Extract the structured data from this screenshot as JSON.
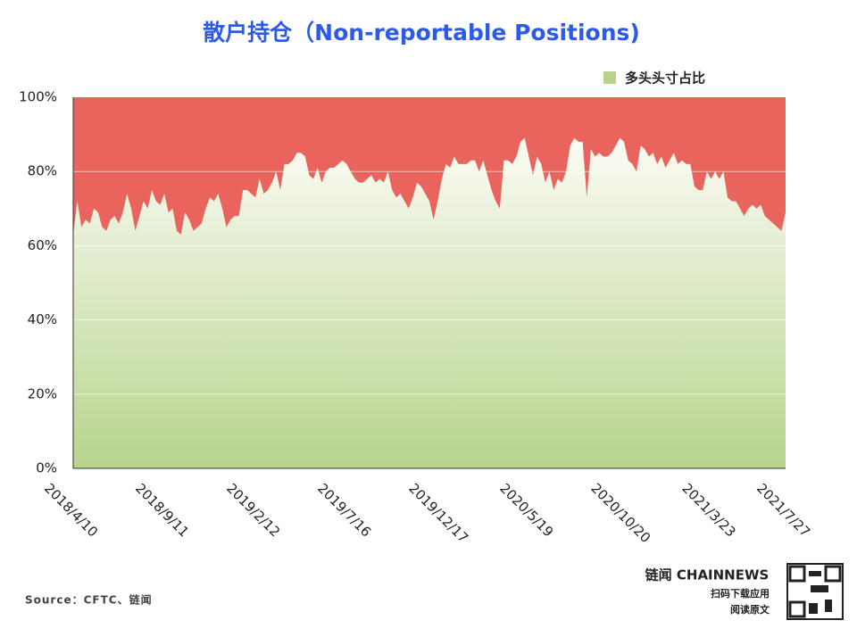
{
  "chart_data": {
    "type": "area",
    "title": "散户持仓（Non-reportable Positions)",
    "categories": [
      "2018/4/10",
      null,
      null,
      null,
      null,
      null,
      null,
      null,
      null,
      null,
      null,
      null,
      null,
      null,
      null,
      null,
      null,
      null,
      null,
      null,
      null,
      null,
      "2018/9/11",
      null,
      null,
      null,
      null,
      null,
      null,
      null,
      null,
      null,
      null,
      null,
      null,
      null,
      null,
      null,
      null,
      null,
      null,
      null,
      null,
      null,
      "2019/2/12",
      null,
      null,
      null,
      null,
      null,
      null,
      null,
      null,
      null,
      null,
      null,
      null,
      null,
      null,
      null,
      null,
      null,
      null,
      null,
      null,
      null,
      "2019/7/16",
      null,
      null,
      null,
      null,
      null,
      null,
      null,
      null,
      null,
      null,
      null,
      null,
      null,
      null,
      null,
      null,
      null,
      null,
      null,
      null,
      null,
      "2019/12/17",
      null,
      null,
      null,
      null,
      null,
      null,
      null,
      null,
      null,
      null,
      null,
      null,
      null,
      null,
      null,
      null,
      null,
      null,
      null,
      null,
      null,
      "2020/5/19",
      null,
      null,
      null,
      null,
      null,
      null,
      null,
      null,
      null,
      null,
      null,
      null,
      null,
      null,
      null,
      null,
      null,
      null,
      null,
      null,
      null,
      "2020/10/20",
      null,
      null,
      null,
      null,
      null,
      null,
      null,
      null,
      null,
      null,
      null,
      null,
      null,
      null,
      null,
      null,
      null,
      null,
      null,
      null,
      null,
      "2021/3/23",
      null,
      null,
      null,
      null,
      null,
      null,
      null,
      null,
      null,
      null,
      null,
      null,
      null,
      null,
      null,
      null,
      null,
      "2021/7/27"
    ],
    "series": [
      {
        "name": "多头头寸占比",
        "color": "#b7d48c",
        "values": [
          63,
          72,
          65,
          67,
          66,
          70,
          69,
          65,
          64,
          67,
          68,
          66,
          69,
          74,
          70,
          64,
          68,
          72,
          70,
          75,
          72,
          71,
          74,
          69,
          70,
          64,
          63,
          69,
          67,
          64,
          65,
          66,
          70,
          73,
          72,
          74,
          70,
          65,
          67,
          68,
          68,
          75,
          75,
          74,
          73,
          78,
          74,
          75,
          77,
          80,
          75,
          82,
          82,
          83,
          85,
          85,
          84,
          79,
          78,
          81,
          77,
          80,
          81,
          81,
          82,
          83,
          82,
          80,
          78,
          77,
          77,
          78,
          79,
          77,
          78,
          77,
          80,
          75,
          73,
          74,
          72,
          70,
          73,
          77,
          76,
          74,
          72,
          67,
          72,
          78,
          82,
          81,
          84,
          82,
          82,
          82,
          83,
          83,
          80,
          83,
          79,
          75,
          72,
          70,
          83,
          83,
          82,
          84,
          88,
          89,
          84,
          79,
          84,
          82,
          77,
          80,
          75,
          78,
          77,
          80,
          87,
          89,
          88,
          88,
          73,
          86,
          84,
          85,
          84,
          84,
          85,
          87,
          89,
          88,
          83,
          82,
          80,
          87,
          86,
          84,
          85,
          82,
          84,
          81,
          83,
          85,
          82,
          83,
          82,
          82,
          76,
          75,
          75,
          80,
          78,
          80,
          78,
          80,
          73,
          72,
          72,
          70,
          68,
          70,
          71,
          70,
          71,
          68,
          67,
          66,
          65,
          64,
          69
        ]
      }
    ],
    "remainder_color": "#e8645c",
    "ylim": [
      0,
      100
    ],
    "yticks": [
      {
        "value": 0,
        "label": "0%"
      },
      {
        "value": 20,
        "label": "20%"
      },
      {
        "value": 40,
        "label": "40%"
      },
      {
        "value": 60,
        "label": "60%"
      },
      {
        "value": 80,
        "label": "80%"
      },
      {
        "value": 100,
        "label": "100%"
      }
    ],
    "grid": true,
    "legend": "top-right",
    "source": "Source：CFTC、链闻"
  },
  "brand": {
    "name": "链闻 CHAINNEWS",
    "line1": "扫码下载应用",
    "line2": "阅读原文"
  }
}
